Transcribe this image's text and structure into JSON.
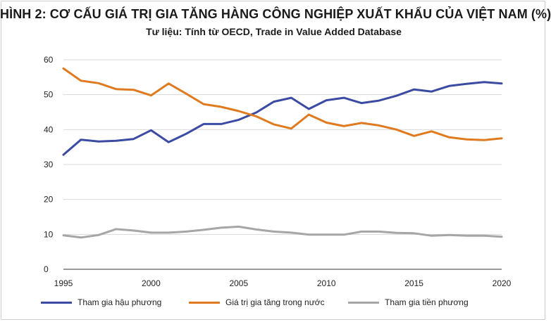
{
  "chart_data": {
    "type": "line",
    "title": "HÌNH 2: CƠ CẤU GIÁ TRỊ GIA TĂNG HÀNG CÔNG NGHIỆP XUẤT KHẨU CỦA VIỆT NAM (%)",
    "subtitle": "Tư liệu: Tính từ OECD, Trade in Value Added Database",
    "xlabel": "",
    "ylabel": "",
    "xlim": [
      1995,
      2020
    ],
    "ylim": [
      0,
      60
    ],
    "xticks": [
      "1995",
      "2000",
      "2005",
      "2010",
      "2015",
      "2020"
    ],
    "yticks": [
      "0",
      "10",
      "20",
      "30",
      "40",
      "50",
      "60"
    ],
    "grid": "horizontal",
    "legend_position": "bottom",
    "x": [
      1995,
      1996,
      1997,
      1998,
      1999,
      2000,
      2001,
      2002,
      2003,
      2004,
      2005,
      2006,
      2007,
      2008,
      2009,
      2010,
      2011,
      2012,
      2013,
      2014,
      2015,
      2016,
      2017,
      2018,
      2019,
      2020
    ],
    "series": [
      {
        "name": "Tham gia hậu phương",
        "color": "#3b4ba3",
        "values": [
          32.8,
          37.1,
          36.6,
          36.8,
          37.3,
          39.8,
          36.4,
          38.8,
          41.6,
          41.6,
          42.8,
          44.9,
          48.0,
          49.1,
          45.9,
          48.4,
          49.1,
          47.6,
          48.3,
          49.7,
          51.5,
          50.9,
          52.5,
          53.1,
          53.6,
          53.2
        ]
      },
      {
        "name": "Giá trị gia tăng trong nước",
        "color": "#e07a1f",
        "values": [
          57.5,
          54.0,
          53.3,
          51.6,
          51.4,
          49.8,
          53.2,
          50.3,
          47.3,
          46.5,
          45.3,
          43.8,
          41.5,
          40.3,
          44.3,
          42.0,
          41.0,
          41.9,
          41.2,
          40.0,
          38.2,
          39.5,
          37.8,
          37.2,
          37.0,
          37.5
        ]
      },
      {
        "name": "Tham gia tiền phương",
        "color": "#a6a6a6",
        "values": [
          9.7,
          9.1,
          9.8,
          11.5,
          11.1,
          10.5,
          10.5,
          10.8,
          11.3,
          11.9,
          12.2,
          11.4,
          10.8,
          10.5,
          9.9,
          9.9,
          9.9,
          10.8,
          10.8,
          10.4,
          10.3,
          9.6,
          9.8,
          9.6,
          9.6,
          9.3
        ]
      }
    ]
  }
}
